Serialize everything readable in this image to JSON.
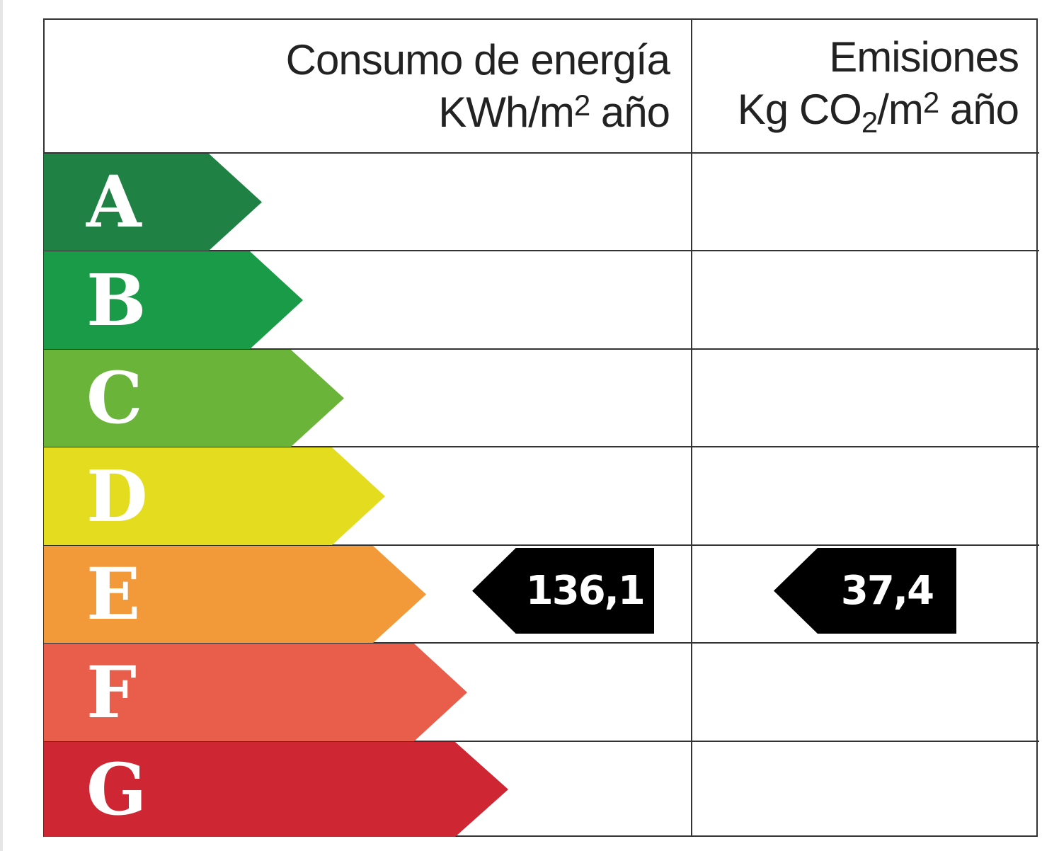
{
  "header": {
    "energy_title": "Consumo de energía",
    "energy_unit_pre": "KWh/m",
    "energy_unit_sup": "2",
    "energy_unit_post": " año",
    "emissions_title": "Emisiones",
    "emissions_unit_pre": "Kg CO",
    "emissions_unit_sub": "2",
    "emissions_unit_mid": "/m",
    "emissions_unit_sup": "2",
    "emissions_unit_post": " año"
  },
  "classes": [
    {
      "letter": "A",
      "color": "#1f8244"
    },
    {
      "letter": "B",
      "color": "#1a9b48"
    },
    {
      "letter": "C",
      "color": "#6bb43a"
    },
    {
      "letter": "D",
      "color": "#e3dc1f"
    },
    {
      "letter": "E",
      "color": "#f2993a"
    },
    {
      "letter": "F",
      "color": "#e85e4a"
    },
    {
      "letter": "G",
      "color": "#cf2633"
    }
  ],
  "rating": {
    "class": "E",
    "energy_value": "136,1",
    "emissions_value": "37,4"
  }
}
